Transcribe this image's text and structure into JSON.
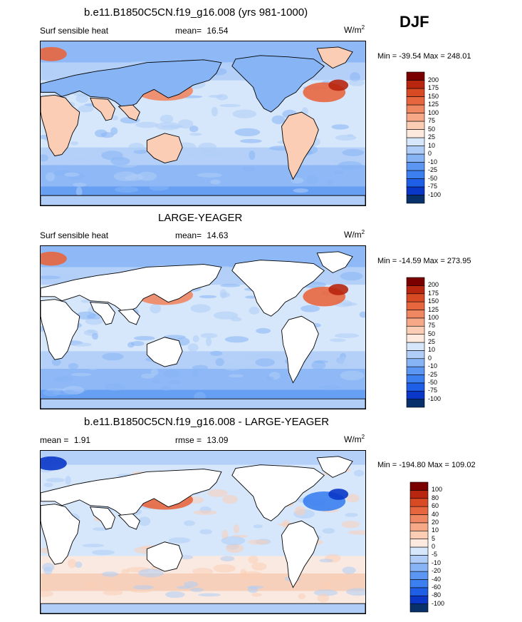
{
  "season": "DJF",
  "units_main": "W/m",
  "units_sup": "2",
  "palettes": {
    "abs": [
      "#08306b",
      "#0a37c8",
      "#1f5fe8",
      "#3b7ff0",
      "#5b97f2",
      "#86b4f5",
      "#b0cdf8",
      "#d6e6fb",
      "#fde9dd",
      "#fbcdb4",
      "#f6a887",
      "#f08763",
      "#e8663e",
      "#d84a24",
      "#b8260f",
      "#7a0000"
    ],
    "diff": [
      "#08306b",
      "#0a37c8",
      "#1f5fe8",
      "#3b7ff0",
      "#5b97f2",
      "#86b4f5",
      "#b0cdf8",
      "#d6e6fb",
      "#fde9dd",
      "#fbcdb4",
      "#f6a887",
      "#f08763",
      "#e8663e",
      "#d84a24",
      "#b8260f",
      "#7a0000"
    ]
  },
  "panels": [
    {
      "title": "b.e11.B1850C5CN.f19_g16.008 (yrs 981-1000)",
      "left_label": "Surf sensible heat",
      "stat_label": "mean=",
      "stat_value": "16.54",
      "minmax": "Min = -39.54 Max = 248.01",
      "colorbar_levels": [
        "-100",
        "-75",
        "-50",
        "-25",
        "-10",
        "0",
        "10",
        "25",
        "50",
        "75",
        "100",
        "125",
        "150",
        "175",
        "200"
      ],
      "land_filled": true
    },
    {
      "title": "LARGE-YEAGER",
      "left_label": "Surf sensible heat",
      "stat_label": "mean=",
      "stat_value": "14.63",
      "minmax": "Min = -14.59 Max = 273.95",
      "colorbar_levels": [
        "-100",
        "-75",
        "-50",
        "-25",
        "-10",
        "0",
        "10",
        "25",
        "50",
        "75",
        "100",
        "125",
        "150",
        "175",
        "200"
      ],
      "land_filled": false
    },
    {
      "title": "b.e11.B1850C5CN.f19_g16.008 - LARGE-YEAGER",
      "left_label": "mean =",
      "left_value": "1.91",
      "stat_label": "rmse =",
      "stat_value": "13.09",
      "minmax": "Min = -194.80 Max = 109.02",
      "colorbar_levels": [
        "-100",
        "-80",
        "-60",
        "-40",
        "-20",
        "-10",
        "-5",
        "0",
        "5",
        "10",
        "20",
        "40",
        "60",
        "80",
        "100"
      ],
      "land_filled": false
    }
  ]
}
